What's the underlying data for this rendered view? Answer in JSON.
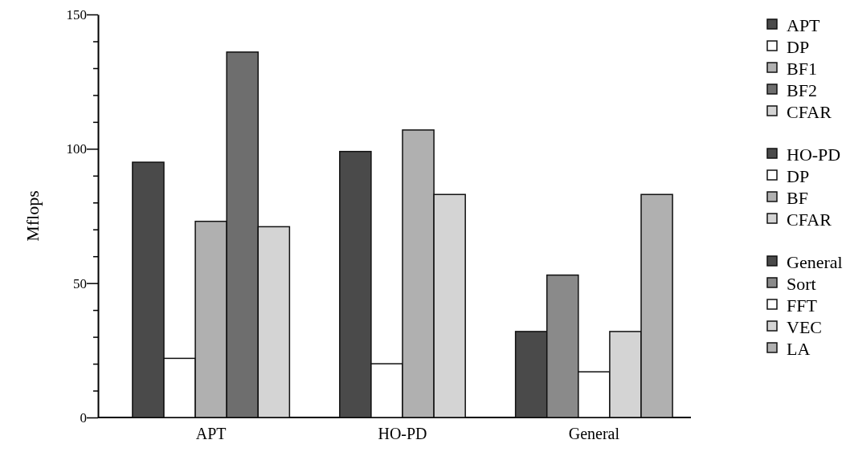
{
  "chart_data": {
    "type": "bar",
    "ylabel": "Mflops",
    "categories": [
      "APT",
      "HO-PD",
      "General"
    ],
    "ylim": [
      0,
      150
    ],
    "yticks": [
      0,
      {
        "value": 10,
        "label": null
      },
      {
        "value": 20,
        "label": null
      },
      {
        "value": 30,
        "label": null
      },
      {
        "value": 40,
        "label": null
      },
      50,
      {
        "value": 60,
        "label": null
      },
      {
        "value": 70,
        "label": null
      },
      {
        "value": 80,
        "label": null
      },
      {
        "value": 90,
        "label": null
      },
      100,
      {
        "value": 110,
        "label": null
      },
      {
        "value": 120,
        "label": null
      },
      {
        "value": 130,
        "label": null
      },
      {
        "value": 140,
        "label": null
      },
      150
    ],
    "legend": "right",
    "grid": false,
    "series": [
      {
        "name": "APT",
        "color": "#4a4a4a",
        "values": [
          95,
          null,
          null
        ]
      },
      {
        "name": "DP",
        "color": "#ffffff",
        "values": [
          22,
          null,
          null
        ]
      },
      {
        "name": "BF1",
        "color": "#b0b0b0",
        "values": [
          73,
          null,
          null
        ]
      },
      {
        "name": "BF2",
        "color": "#6e6e6e",
        "values": [
          136,
          null,
          null
        ]
      },
      {
        "name": "CFAR",
        "color": "#d4d4d4",
        "values": [
          71,
          null,
          null
        ]
      },
      {
        "name": "HO-PD",
        "color": "#4a4a4a",
        "values": [
          null,
          99,
          null
        ]
      },
      {
        "name": "DP",
        "color": "#ffffff",
        "values": [
          null,
          20,
          null
        ]
      },
      {
        "name": "BF",
        "color": "#b0b0b0",
        "values": [
          null,
          107,
          null
        ]
      },
      {
        "name": "CFAR",
        "color": "#d4d4d4",
        "values": [
          null,
          83,
          null
        ]
      },
      {
        "name": "General",
        "color": "#4a4a4a",
        "values": [
          null,
          null,
          32
        ]
      },
      {
        "name": "Sort",
        "color": "#8a8a8a",
        "values": [
          null,
          null,
          53
        ]
      },
      {
        "name": "FFT",
        "color": "#ffffff",
        "values": [
          null,
          null,
          17
        ]
      },
      {
        "name": "VEC",
        "color": "#d4d4d4",
        "values": [
          null,
          null,
          32
        ]
      },
      {
        "name": "LA",
        "color": "#b0b0b0",
        "values": [
          null,
          null,
          83
        ]
      }
    ]
  }
}
